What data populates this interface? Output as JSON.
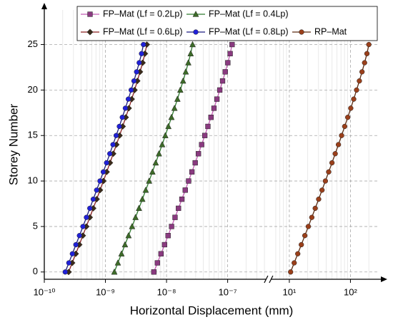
{
  "chart_data": {
    "type": "line",
    "xlabel": "Horizontal Displacement (mm)",
    "ylabel": "Storey Number",
    "xscale": "log",
    "xlim": [
      1e-10,
      4.2e-07
    ],
    "x2lim": [
      5.1,
      290
    ],
    "xticks": [
      {
        "value": 1e-10,
        "label": "10⁻¹⁰"
      },
      {
        "value": 1e-09,
        "label": "10⁻⁹"
      },
      {
        "value": 1e-08,
        "label": "10⁻⁸"
      },
      {
        "value": 1e-07,
        "label": "10⁻⁷"
      }
    ],
    "x2ticks": [
      {
        "value": 10,
        "label": "10¹"
      },
      {
        "value": 100,
        "label": "10²"
      }
    ],
    "ylim": [
      -0.8,
      28.8
    ],
    "yticks": [
      0,
      5,
      10,
      15,
      20,
      25
    ],
    "grid": true,
    "minor_grid": true,
    "legend": "top",
    "y": [
      0,
      1,
      2,
      3,
      4,
      5,
      6,
      7,
      8,
      9,
      10,
      11,
      12,
      13,
      14,
      15,
      16,
      17,
      18,
      19,
      20,
      21,
      22,
      23,
      24,
      25
    ],
    "series": [
      {
        "name": "FP–Mat (Lf = 0.2Lp)",
        "color": "#c45cb4",
        "marker_color": "#8a3a80",
        "marker": "square",
        "values": [
          6.2e-09,
          7.09e-09,
          8.12e-09,
          9.28e-09,
          1.06e-08,
          1.208e-08,
          1.377e-08,
          1.567e-08,
          1.782e-08,
          2.024e-08,
          2.296e-08,
          2.602e-08,
          2.945e-08,
          3.326e-08,
          3.753e-08,
          4.228e-08,
          4.752e-08,
          5.335e-08,
          5.974e-08,
          6.677e-08,
          7.434e-08,
          8.258e-08,
          9.133e-08,
          1.006e-07,
          1.099e-07,
          1.181e-07
        ]
      },
      {
        "name": "FP–Mat (Lf = 0.4Lp)",
        "color": "#2e7a2e",
        "marker_color": "#3d6b28",
        "marker": "triangle",
        "values": [
          1.4e-09,
          1.6e-09,
          1.83e-09,
          2.09e-09,
          2.39e-09,
          2.73e-09,
          3.11e-09,
          3.54e-09,
          4.02e-09,
          4.57e-09,
          5.19e-09,
          5.88e-09,
          6.65e-09,
          7.51e-09,
          8.48e-09,
          9.55e-09,
          1.073e-08,
          1.205e-08,
          1.349e-08,
          1.508e-08,
          1.679e-08,
          1.865e-08,
          2.062e-08,
          2.271e-08,
          2.481e-08,
          2.667e-08
        ]
      },
      {
        "name": "FP–Mat (Lf = 0.6Lp)",
        "color": "#8a1f1f",
        "marker_color": "#3a2a1a",
        "marker": "diamond",
        "values": [
          2.5e-10,
          2.86e-10,
          3.27e-10,
          3.74e-10,
          4.27e-10,
          4.87e-10,
          5.55e-10,
          6.32e-10,
          7.19e-10,
          8.16e-10,
          9.26e-10,
          1.049e-09,
          1.188e-09,
          1.341e-09,
          1.514e-09,
          1.705e-09,
          1.916e-09,
          2.151e-09,
          2.409e-09,
          2.693e-09,
          2.998e-09,
          3.33e-09,
          3.68e-09,
          4.06e-09,
          4.43e-09,
          4.76e-09
        ]
      },
      {
        "name": "FP–Mat (Lf = 0.8Lp)",
        "color": "#1a1a80",
        "marker_color": "#2020d8",
        "marker": "circle",
        "values": [
          2.2e-10,
          2.52e-10,
          2.88e-10,
          3.29e-10,
          3.76e-10,
          4.29e-10,
          4.89e-10,
          5.56e-10,
          6.32e-10,
          7.18e-10,
          8.15e-10,
          9.23e-10,
          1.045e-09,
          1.18e-09,
          1.33e-09,
          1.5e-09,
          1.69e-09,
          1.89e-09,
          2.12e-09,
          2.37e-09,
          2.64e-09,
          2.93e-09,
          3.24e-09,
          3.57e-09,
          3.9e-09,
          4.19e-09
        ]
      },
      {
        "name": "RP–Mat",
        "color": "#5a2a10",
        "marker_color": "#9a3f1a",
        "marker": "circle",
        "axis": "x2",
        "values": [
          10.5,
          12.01,
          13.74,
          15.71,
          17.94,
          20.46,
          23.32,
          26.54,
          30.18,
          34.28,
          38.89,
          44.07,
          49.88,
          56.33,
          63.57,
          71.6,
          80.48,
          90.35,
          101.2,
          113.1,
          125.9,
          139.9,
          154.7,
          170.3,
          186.1,
          200.0
        ]
      }
    ]
  }
}
